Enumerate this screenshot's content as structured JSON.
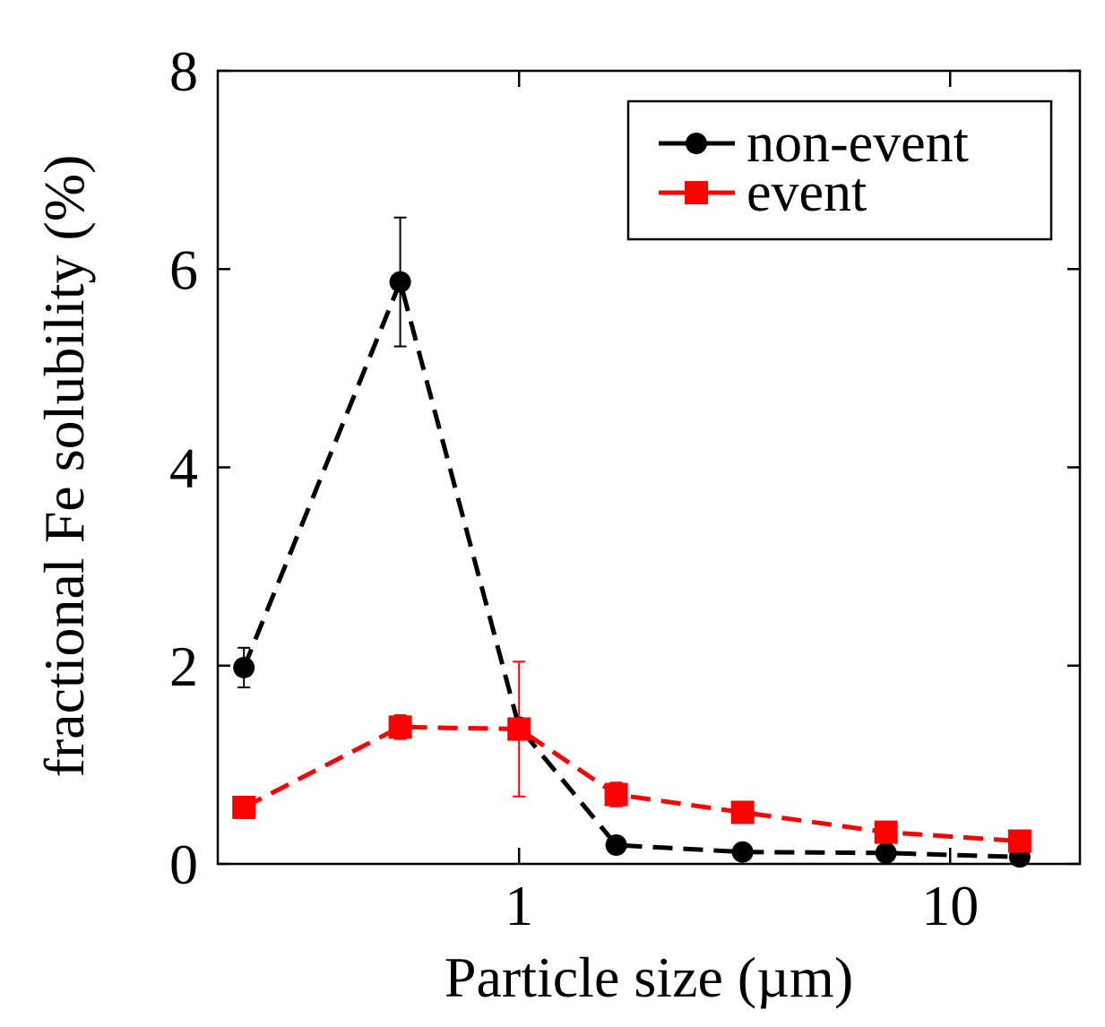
{
  "chart_data": {
    "type": "line",
    "xscale": "log",
    "xlim": [
      0.2,
      20
    ],
    "ylim": [
      0,
      8
    ],
    "xlabel": "Particle size (µm)",
    "ylabel": "fractional Fe solubility (%)",
    "xticks": [
      {
        "value": 1,
        "label": "1"
      },
      {
        "value": 10,
        "label": "10"
      }
    ],
    "yticks": [
      {
        "value": 0,
        "label": "0"
      },
      {
        "value": 2,
        "label": "2"
      },
      {
        "value": 4,
        "label": "4"
      },
      {
        "value": 6,
        "label": "6"
      },
      {
        "value": 8,
        "label": "8"
      }
    ],
    "legend": {
      "position": "top-right"
    },
    "series": [
      {
        "name": "non-event",
        "color": "#000000",
        "marker": "circle",
        "x": [
          0.23,
          0.53,
          1.0,
          1.68,
          3.3,
          7.1,
          14.5
        ],
        "y": [
          1.98,
          5.87,
          1.38,
          0.19,
          0.12,
          0.11,
          0.07
        ],
        "err": [
          0.2,
          0.65,
          0.0,
          0.0,
          0.0,
          0.0,
          0.0
        ]
      },
      {
        "name": "event",
        "color": "#ff0000",
        "marker": "square",
        "x": [
          0.23,
          0.53,
          1.0,
          1.68,
          3.3,
          7.1,
          14.5
        ],
        "y": [
          0.57,
          1.38,
          1.36,
          0.7,
          0.52,
          0.32,
          0.23
        ],
        "err": [
          0.0,
          0.12,
          0.68,
          0.12,
          0.06,
          0.05,
          0.09
        ]
      }
    ]
  }
}
